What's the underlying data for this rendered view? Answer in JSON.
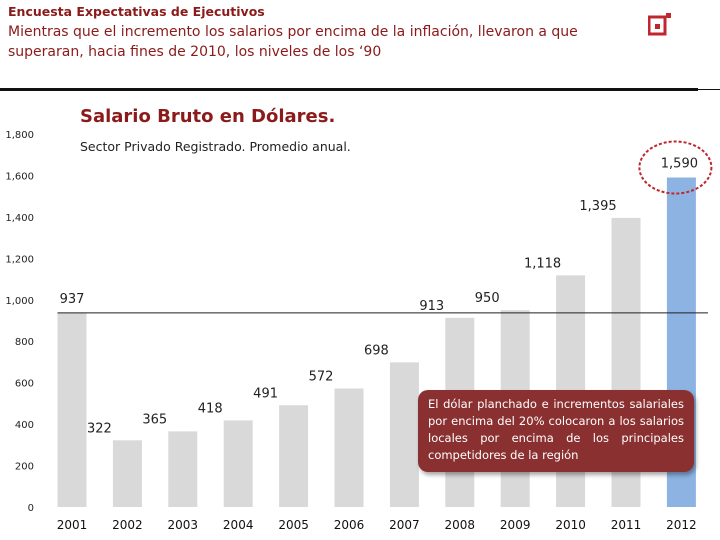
{
  "header": {
    "kicker": "Encuesta Expectativas de Ejecutivos",
    "title": "Mientras que el incremento los salarios por encima de la inflación, llevaron a que superaran, hacia fines de 2010, los niveles de los ‘90"
  },
  "note": "El dólar planchado e incrementos salariales por encima del 20% colocaron a los salarios locales por encima de los principales competidores de la región",
  "colors": {
    "accent": "#8b1a1a",
    "bar": "#d9d9d9",
    "highlight_bar": "#8db3e2",
    "highlight_circle": "#c0262d",
    "note_bg": "#8b3030"
  },
  "chart_data": {
    "type": "bar",
    "title": "Salario Bruto en Dólares.",
    "subtitle": "Sector Privado Registrado. Promedio anual.",
    "categories": [
      "2001",
      "2002",
      "2003",
      "2004",
      "2005",
      "2006",
      "2007",
      "2008",
      "2009",
      "2010",
      "2011",
      "2012"
    ],
    "values": [
      937,
      322,
      365,
      418,
      491,
      572,
      698,
      913,
      950,
      1118,
      1395,
      1590
    ],
    "value_labels": [
      "937",
      "322",
      "365",
      "418",
      "491",
      "572",
      "698",
      "913",
      "950",
      "1,118",
      "1,395",
      "1,590"
    ],
    "y_ticks": [
      0,
      200,
      400,
      600,
      800,
      1000,
      1200,
      1400,
      1600,
      1800
    ],
    "y_tick_labels": [
      "0",
      "200",
      "400",
      "600",
      "800",
      "1,000",
      "1,200",
      "1,400",
      "1,600",
      "1,800"
    ],
    "ylim": [
      0,
      1800
    ],
    "reference_line": 937,
    "highlight_category": "2012",
    "grid": false,
    "legend": "none"
  }
}
